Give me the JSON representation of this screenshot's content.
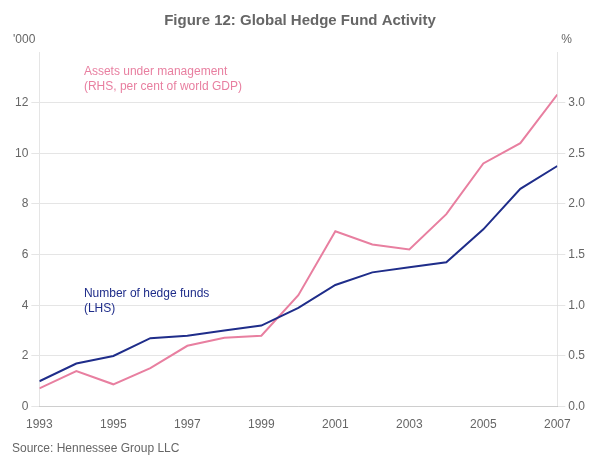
{
  "chart_data": {
    "type": "line",
    "title": "Figure 12: Global Hedge Fund Activity",
    "source": "Source: Hennessee Group LLC",
    "ylabel": "'000",
    "y2label": "%",
    "x": [
      1993,
      1994,
      1995,
      1996,
      1997,
      1998,
      1999,
      2000,
      2001,
      2002,
      2003,
      2004,
      2005,
      2006,
      2007
    ],
    "series": [
      {
        "color": "#1f2d8a",
        "values": [
          1.0,
          1.7,
          2.0,
          2.7,
          2.8,
          3.0,
          3.2,
          3.9,
          4.8,
          5.3,
          5.5,
          5.7,
          7.0,
          8.6,
          9.5
        ]
      },
      {
        "color": "#e87fa0",
        "axis": "y2",
        "values": [
          0.18,
          0.35,
          0.22,
          0.38,
          0.6,
          0.68,
          0.7,
          1.1,
          1.73,
          1.6,
          1.55,
          1.9,
          2.4,
          2.6,
          3.08
        ]
      }
    ],
    "annotations": [
      {
        "text": [
          "Number of hedge funds",
          "(LHS)"
        ],
        "color": "#1f2d8a"
      },
      {
        "text": [
          "Assets under management",
          "(RHS, per cent of world GDP)"
        ],
        "color": "#e87fa0"
      }
    ],
    "xlim": [
      1993,
      2007
    ],
    "xticks": [
      1993,
      1995,
      1997,
      1999,
      2001,
      2003,
      2005,
      2007
    ],
    "ylim": [
      0,
      14
    ],
    "yticks": [
      0,
      2,
      4,
      6,
      8,
      10,
      12
    ],
    "y2lim": [
      0.0,
      3.5
    ],
    "y2ticks": [
      {
        "value": 0.0,
        "label": "0.0"
      },
      0.5,
      {
        "value": 1.0,
        "label": "1.0"
      },
      1.5,
      {
        "value": 2.0,
        "label": "2.0"
      },
      2.5,
      {
        "value": 3.0,
        "label": "3.0"
      }
    ],
    "grid": "y",
    "legend": false
  }
}
